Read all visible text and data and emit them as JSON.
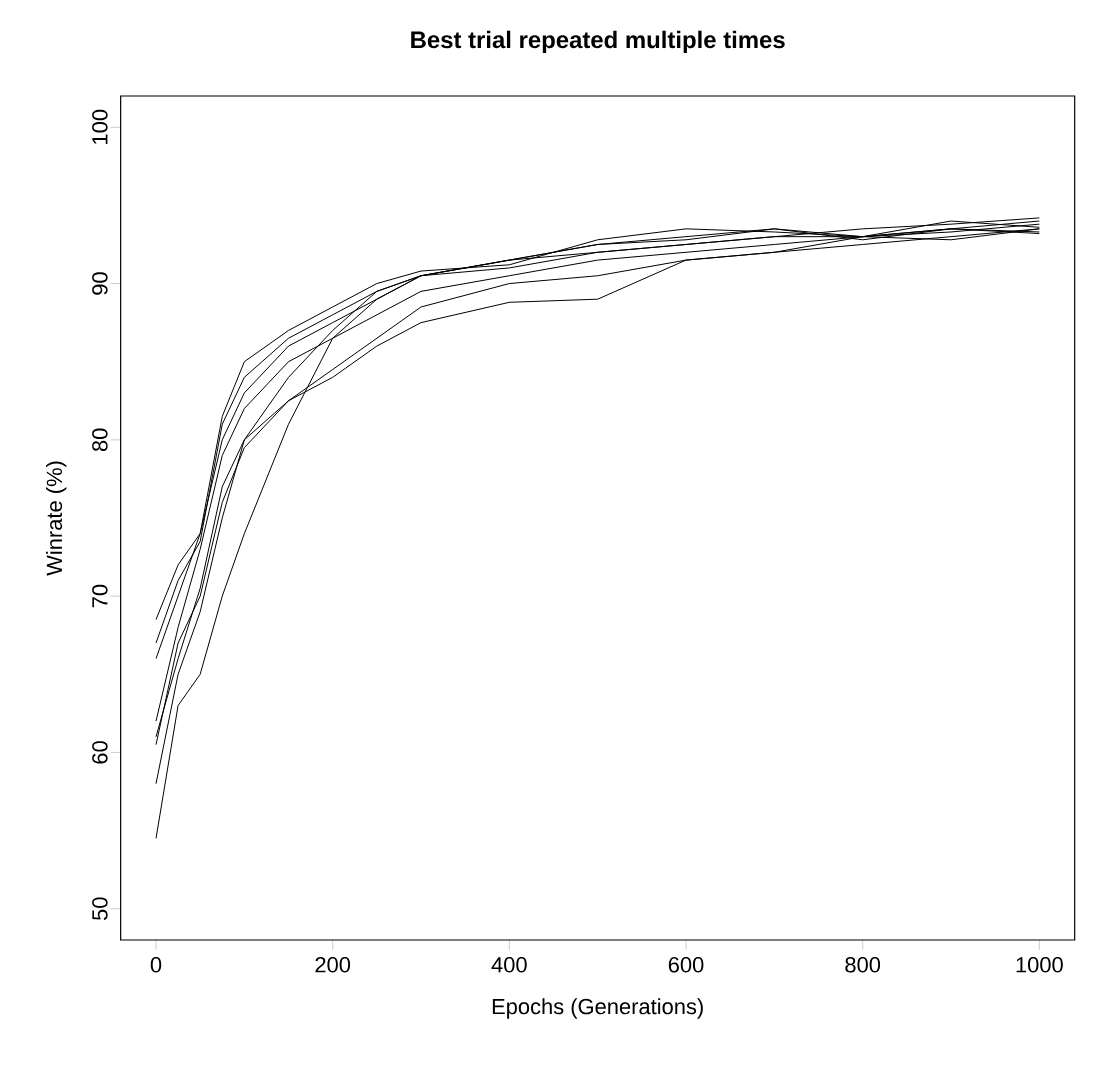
{
  "chart_data": {
    "type": "line",
    "title": "Best trial repeated multiple times",
    "xlabel": "Epochs (Generations)",
    "ylabel": "Winrate (%)",
    "x": [
      0,
      25,
      50,
      75,
      100,
      150,
      200,
      250,
      300,
      400,
      500,
      600,
      700,
      800,
      900,
      1000
    ],
    "xlim": [
      -40,
      1040
    ],
    "ylim": [
      48,
      102
    ],
    "xticks": [
      0,
      200,
      400,
      600,
      800,
      1000
    ],
    "yticks": [
      50,
      60,
      70,
      80,
      90,
      100
    ],
    "grid": false,
    "marker": "none",
    "line_style": "solid",
    "series": [
      {
        "color": "#000000",
        "values": [
          54.5,
          63,
          65,
          70,
          74,
          81,
          86.5,
          89,
          90.5,
          91.5,
          92,
          92.5,
          93,
          93,
          93.5,
          94
        ]
      },
      {
        "color": "#000000",
        "values": [
          60.5,
          67,
          70,
          76,
          79.5,
          82.5,
          84,
          86,
          87.5,
          88.8,
          89,
          91.5,
          92,
          92.5,
          93,
          93.5
        ]
      },
      {
        "color": "#000000",
        "values": [
          61,
          66,
          70.5,
          77,
          80,
          82.5,
          84.5,
          86.5,
          88.5,
          90,
          90.5,
          91.5,
          92,
          93,
          93.3,
          93.8
        ]
      },
      {
        "color": "#000000",
        "values": [
          62,
          68,
          73,
          79,
          82,
          85,
          86.5,
          88,
          89.5,
          90.5,
          91.5,
          92,
          92.5,
          93,
          93.5,
          93.2
        ]
      },
      {
        "color": "#000000",
        "values": [
          66,
          70,
          74,
          80,
          83,
          86,
          87.5,
          89,
          90.5,
          91.5,
          92.5,
          93,
          93.5,
          93,
          92.8,
          93.5
        ]
      },
      {
        "color": "#000000",
        "values": [
          67,
          71,
          73.5,
          81,
          84,
          86.5,
          88,
          89.5,
          90.5,
          91,
          92,
          92.5,
          93,
          93.5,
          93.8,
          94.2
        ]
      },
      {
        "color": "#000000",
        "values": [
          68.5,
          72,
          74,
          81.5,
          85,
          87,
          88.5,
          90,
          90.8,
          91.2,
          92.8,
          93.5,
          93.3,
          93,
          94,
          93.6
        ]
      },
      {
        "color": "#000000",
        "values": [
          58,
          65,
          69,
          75,
          80,
          84,
          87,
          89.5,
          90.5,
          91.5,
          92.5,
          92.8,
          93.5,
          92.8,
          93.5,
          93.3
        ]
      }
    ]
  }
}
